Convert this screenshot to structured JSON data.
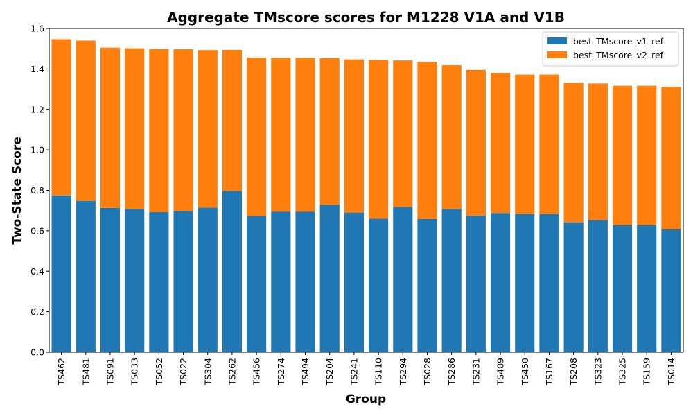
{
  "chart_data": {
    "type": "bar",
    "stacked": true,
    "title": "Aggregate TMscore scores for M1228 V1A and V1B",
    "xlabel": "Group",
    "ylabel": "Two-State Score",
    "ylim": [
      0,
      1.6
    ],
    "yticks": [
      "0.0",
      "0.2",
      "0.4",
      "0.6",
      "0.8",
      "1.0",
      "1.2",
      "1.4",
      "1.6"
    ],
    "legend_position": "top-right",
    "grid": false,
    "categories": [
      "TS462",
      "TS481",
      "TS091",
      "TS033",
      "TS052",
      "TS022",
      "TS304",
      "TS262",
      "TS456",
      "TS274",
      "TS494",
      "TS204",
      "TS241",
      "TS110",
      "TS294",
      "TS028",
      "TS286",
      "TS231",
      "TS489",
      "TS450",
      "TS167",
      "TS208",
      "TS323",
      "TS325",
      "TS159",
      "TS014"
    ],
    "series": [
      {
        "name": "best_TMscore_v1_ref",
        "color": "#1f77b4",
        "values": [
          0.775,
          0.748,
          0.713,
          0.708,
          0.692,
          0.698,
          0.715,
          0.797,
          0.673,
          0.695,
          0.695,
          0.728,
          0.69,
          0.66,
          0.718,
          0.658,
          0.708,
          0.675,
          0.688,
          0.683,
          0.683,
          0.642,
          0.653,
          0.628,
          0.628,
          0.607
        ]
      },
      {
        "name": "best_TMscore_v2_ref",
        "color": "#ff7f0e",
        "values": [
          0.772,
          0.792,
          0.792,
          0.794,
          0.806,
          0.799,
          0.778,
          0.697,
          0.783,
          0.76,
          0.76,
          0.725,
          0.757,
          0.784,
          0.724,
          0.777,
          0.71,
          0.72,
          0.692,
          0.689,
          0.689,
          0.69,
          0.675,
          0.689,
          0.689,
          0.705
        ]
      }
    ]
  }
}
